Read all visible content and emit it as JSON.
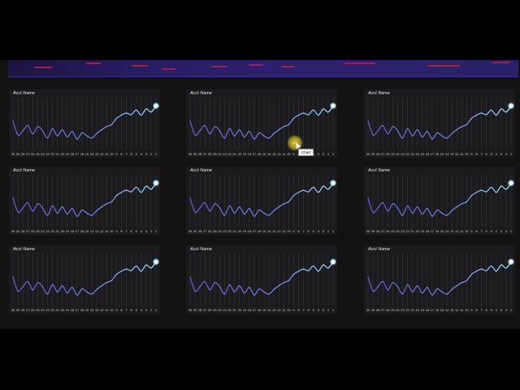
{
  "colors": {
    "background": "#121212",
    "panel": "#1b1b1e",
    "line_start": "#6a55c8",
    "line_end": "#9fe3ff",
    "glow": "#e8fbff"
  },
  "tooltip": {
    "text": "Chart"
  },
  "x_ticks": [
    "30",
    "29",
    "28",
    "27",
    "26",
    "25",
    "24",
    "23",
    "22",
    "21",
    "20",
    "19",
    "18",
    "17",
    "16",
    "15",
    "14",
    "13",
    "12",
    "11",
    "10",
    "9",
    "8",
    "7",
    "6",
    "5",
    "4",
    "3",
    "2",
    "1"
  ],
  "panels": [
    {
      "title": "Acct Name"
    },
    {
      "title": "Acct Name"
    },
    {
      "title": "Acct Name"
    },
    {
      "title": "Acct Name"
    },
    {
      "title": "Acct Name"
    },
    {
      "title": "Acct Name"
    },
    {
      "title": "Acct Name"
    },
    {
      "title": "Acct Name"
    },
    {
      "title": "Acct Name"
    }
  ],
  "chart_data": {
    "type": "line",
    "title": "",
    "xlabel": "",
    "ylabel": "",
    "x": [
      30,
      29,
      28,
      27,
      26,
      25,
      24,
      23,
      22,
      21,
      20,
      19,
      18,
      17,
      16,
      15,
      14,
      13,
      12,
      11,
      10,
      9,
      8,
      7,
      6,
      5,
      4,
      3,
      2,
      1
    ],
    "values": [
      0.55,
      0.28,
      0.36,
      0.46,
      0.3,
      0.44,
      0.36,
      0.22,
      0.4,
      0.26,
      0.38,
      0.24,
      0.35,
      0.2,
      0.32,
      0.26,
      0.22,
      0.31,
      0.38,
      0.44,
      0.48,
      0.6,
      0.66,
      0.7,
      0.67,
      0.76,
      0.66,
      0.78,
      0.72,
      0.84
    ],
    "ylim": [
      0,
      1
    ],
    "grid": true
  }
}
